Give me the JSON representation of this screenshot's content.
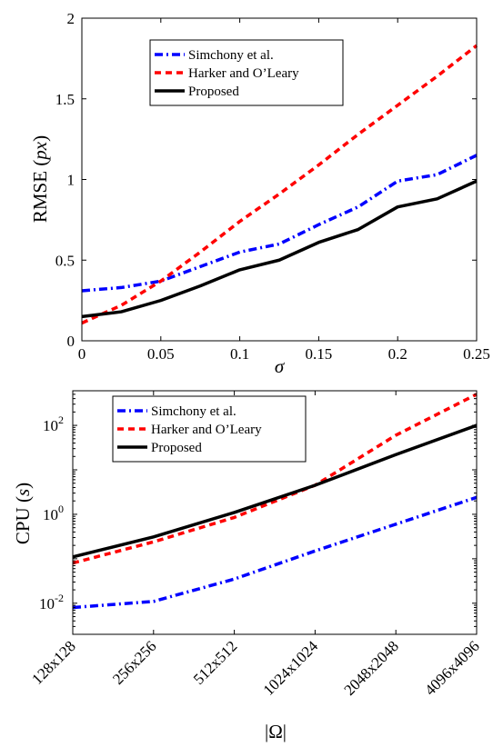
{
  "chart_data": [
    {
      "type": "line",
      "title": "",
      "xlabel": "σ",
      "ylabel_text": "RMSE",
      "ylabel_unit": "px",
      "xlim": [
        0,
        0.25
      ],
      "ylim": [
        0,
        2
      ],
      "xticks": [
        0,
        0.05,
        0.1,
        0.15,
        0.2,
        0.25
      ],
      "xtick_labels": [
        "0",
        "0.05",
        "0.1",
        "0.15",
        "0.2",
        "0.25"
      ],
      "yticks": [
        0,
        0.5,
        1,
        1.5,
        2
      ],
      "ytick_labels": [
        "0",
        "0.5",
        "1",
        "1.5",
        "2"
      ],
      "grid": false,
      "legend_position": "top-center",
      "x": [
        0,
        0.025,
        0.05,
        0.075,
        0.1,
        0.125,
        0.15,
        0.175,
        0.2,
        0.225,
        0.25
      ],
      "series": [
        {
          "name": "Simchony et al.",
          "color": "#0000ff",
          "style": "dash-dot",
          "values": [
            0.31,
            0.33,
            0.37,
            0.46,
            0.55,
            0.6,
            0.72,
            0.83,
            0.99,
            1.03,
            1.15
          ]
        },
        {
          "name": "Harker and O’Leary",
          "color": "#ff0000",
          "style": "dashed",
          "values": [
            0.11,
            0.22,
            0.37,
            0.55,
            0.74,
            0.91,
            1.09,
            1.28,
            1.46,
            1.64,
            1.83
          ]
        },
        {
          "name": "Proposed",
          "color": "#000000",
          "style": "solid",
          "values": [
            0.15,
            0.18,
            0.25,
            0.34,
            0.44,
            0.5,
            0.61,
            0.69,
            0.83,
            0.88,
            0.99
          ]
        }
      ]
    },
    {
      "type": "line",
      "title": "",
      "xlabel": "|Ω|",
      "ylabel_text": "CPU",
      "ylabel_unit": "s",
      "yscale": "log",
      "ylim": [
        0.002,
        600
      ],
      "categories": [
        "128x128",
        "256x256",
        "512x512",
        "1024x1024",
        "2048x2048",
        "4096x4096"
      ],
      "yticks": [
        0.01,
        1,
        100
      ],
      "ytick_labels": [
        {
          "base": "10",
          "exp": "-2"
        },
        {
          "base": "10",
          "exp": "0"
        },
        {
          "base": "10",
          "exp": "2"
        }
      ],
      "grid": false,
      "legend_position": "top-left",
      "series": [
        {
          "name": "Simchony et al.",
          "color": "#0000ff",
          "style": "dash-dot",
          "values": [
            0.008,
            0.011,
            0.035,
            0.15,
            0.6,
            2.4
          ]
        },
        {
          "name": "Harker and O’Leary",
          "color": "#ff0000",
          "style": "dashed",
          "values": [
            0.08,
            0.24,
            0.85,
            4.5,
            60,
            500
          ]
        },
        {
          "name": "Proposed",
          "color": "#000000",
          "style": "solid",
          "values": [
            0.11,
            0.31,
            1.1,
            4.5,
            22,
            100
          ]
        }
      ]
    }
  ]
}
